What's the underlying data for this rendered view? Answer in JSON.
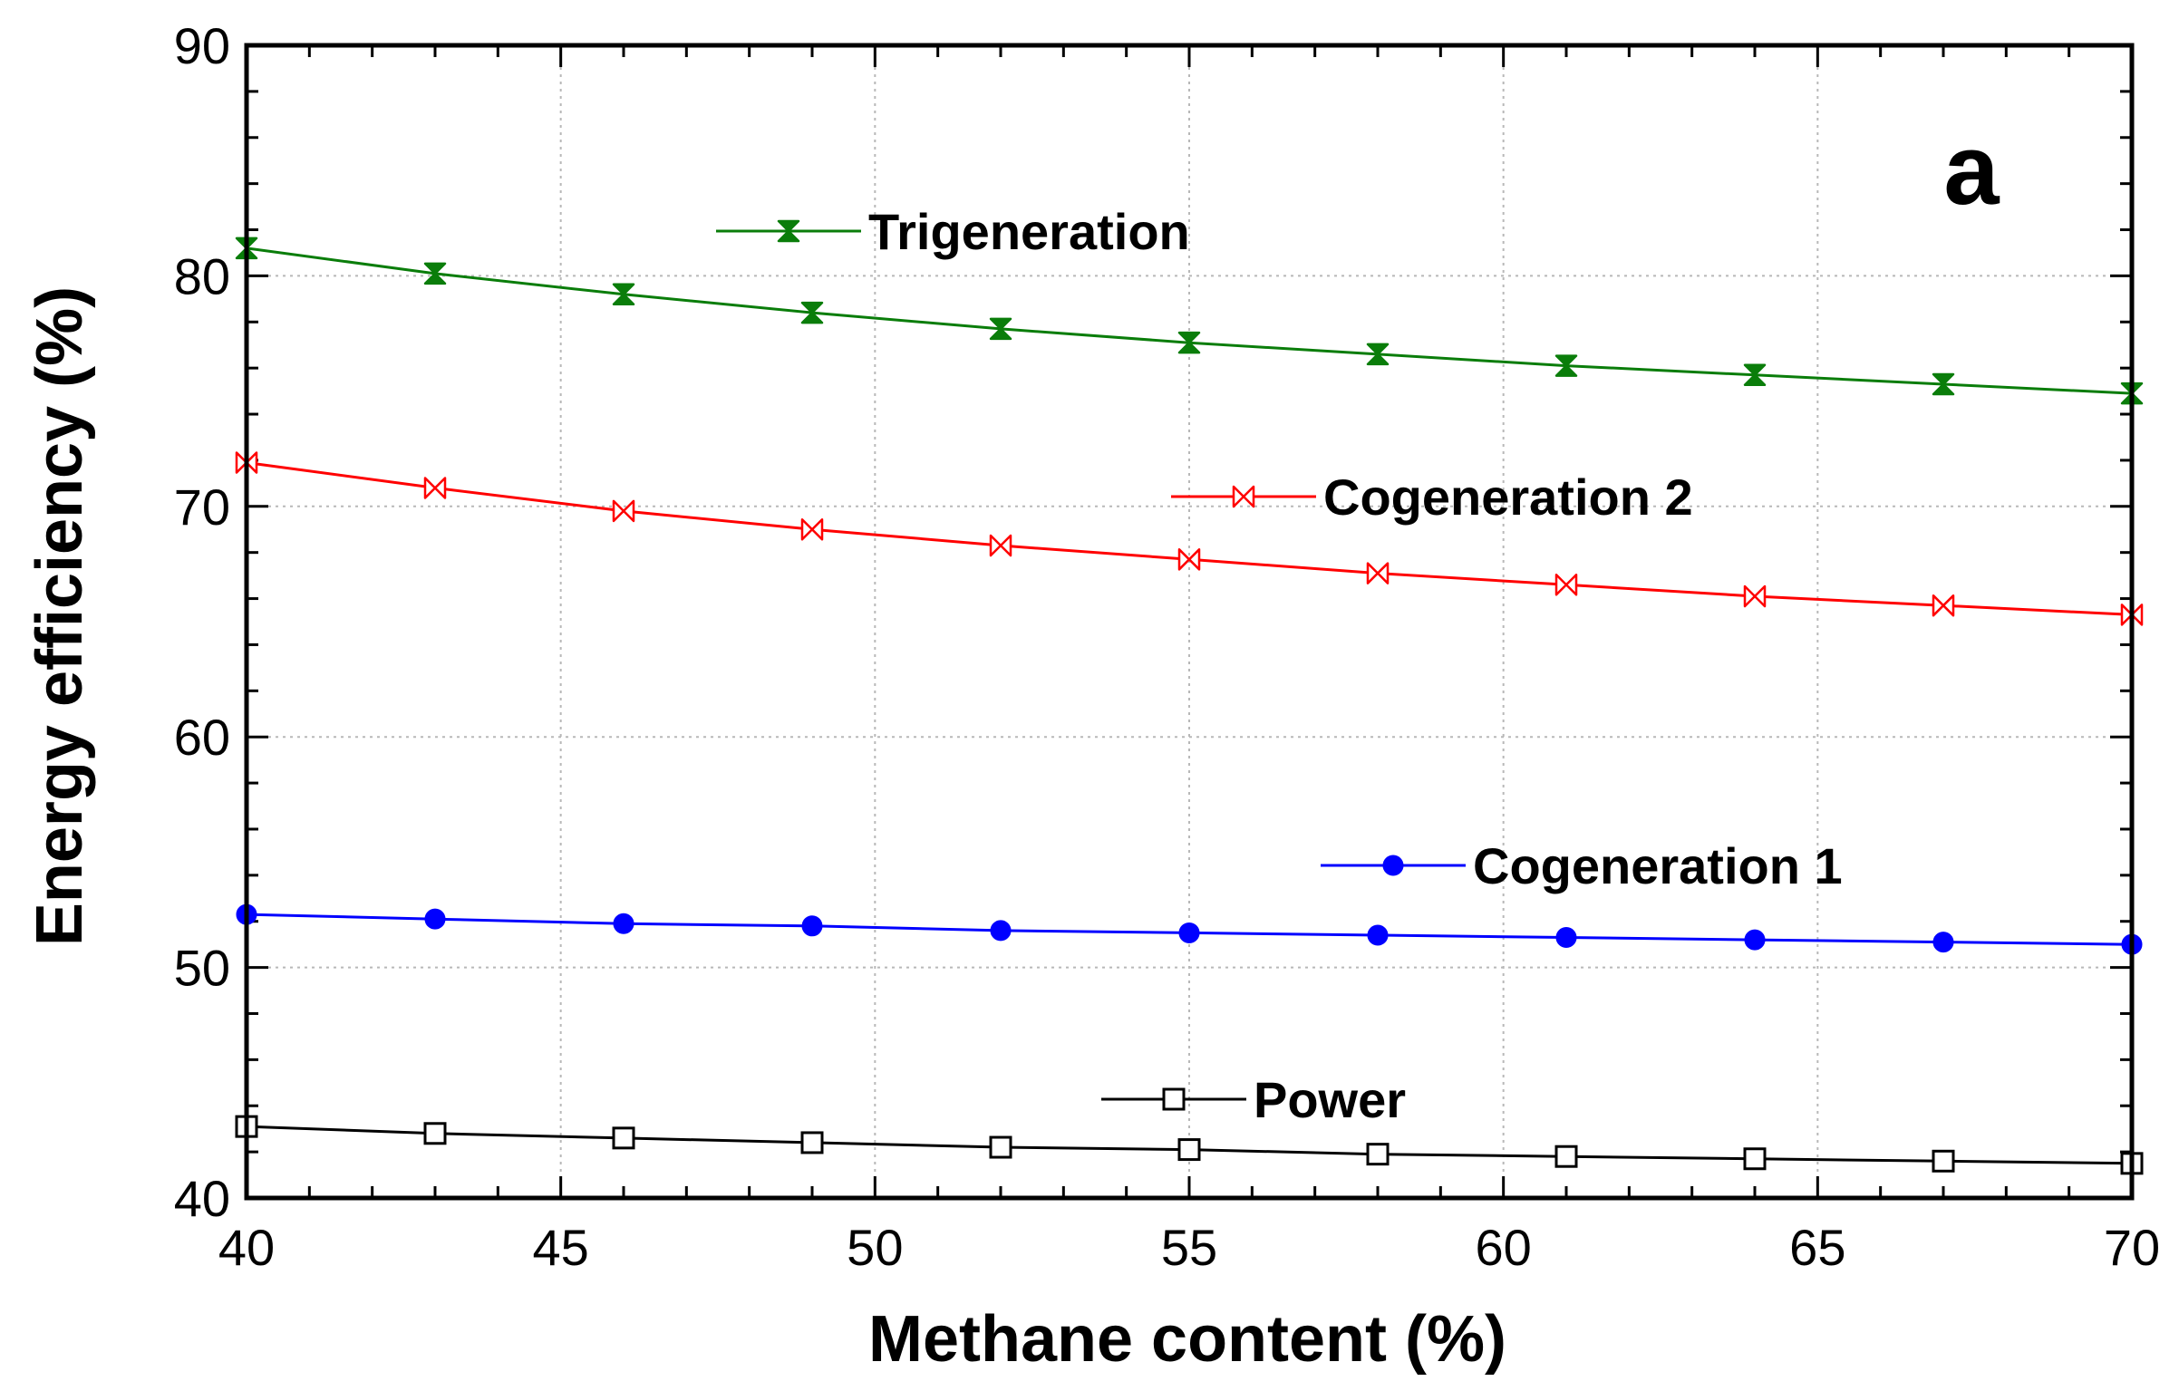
{
  "chart_data": {
    "type": "line",
    "title": "",
    "panel_label": "a",
    "xlabel": "Methane content (%)",
    "ylabel": "Energy efficiency (%)",
    "xlim": [
      40,
      70
    ],
    "ylim": [
      40,
      90
    ],
    "xticks": [
      40,
      45,
      50,
      55,
      60,
      65,
      70
    ],
    "yticks": [
      40,
      50,
      60,
      70,
      80,
      90
    ],
    "grid": true,
    "x": [
      40,
      43,
      46,
      49,
      52,
      55,
      58,
      61,
      64,
      67,
      70
    ],
    "series": [
      {
        "name": "Trigeneration",
        "color": "#0a7d0a",
        "marker": "hourglass",
        "values": [
          81.2,
          80.1,
          79.2,
          78.4,
          77.7,
          77.1,
          76.6,
          76.1,
          75.7,
          75.3,
          74.9
        ]
      },
      {
        "name": "Cogeneration 2",
        "color": "#ff0000",
        "marker": "bowtie",
        "values": [
          71.9,
          70.8,
          69.8,
          69.0,
          68.3,
          67.7,
          67.1,
          66.6,
          66.1,
          65.7,
          65.3
        ]
      },
      {
        "name": "Cogeneration 1",
        "color": "#0000ff",
        "marker": "circle",
        "values": [
          52.3,
          52.1,
          51.9,
          51.8,
          51.6,
          51.5,
          51.4,
          51.3,
          51.2,
          51.1,
          51.0
        ]
      },
      {
        "name": "Power",
        "color": "#000000",
        "marker": "square",
        "values": [
          43.1,
          42.8,
          42.6,
          42.4,
          42.2,
          42.1,
          41.9,
          41.8,
          41.7,
          41.6,
          41.5
        ]
      }
    ]
  }
}
